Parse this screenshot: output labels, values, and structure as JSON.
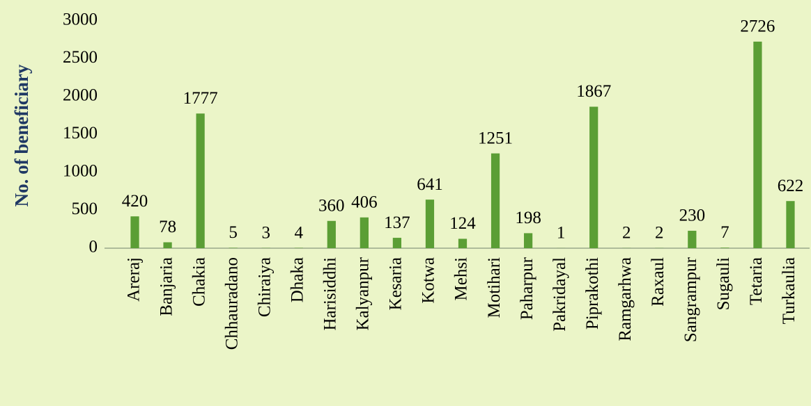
{
  "chart_data": {
    "type": "bar",
    "y_label": "No. of beneficiary",
    "categories": [
      "Areraj",
      "Banjaria",
      "Chakia",
      "Chhauradano",
      "Chiraiya",
      "Dhaka",
      "Harisiddhi",
      "Kalyanpur",
      "Kesaria",
      "Kotwa",
      "Mehsi",
      "Motihari",
      "Paharpur",
      "Pakridayal",
      "Piprakothi",
      "Ramgarhwa",
      "Raxaul",
      "Sangrampur",
      "Sugauli",
      "Tetaria",
      "Turkaulia"
    ],
    "values": [
      420,
      78,
      1777,
      5,
      3,
      4,
      360,
      406,
      137,
      641,
      124,
      1251,
      198,
      1,
      1867,
      2,
      2,
      230,
      7,
      2726,
      622
    ],
    "color": "#5b9e35",
    "ylim": [
      0,
      3000
    ],
    "yticks": [
      0,
      500,
      1000,
      1500,
      2000,
      2500,
      3000
    ],
    "grid": false
  }
}
